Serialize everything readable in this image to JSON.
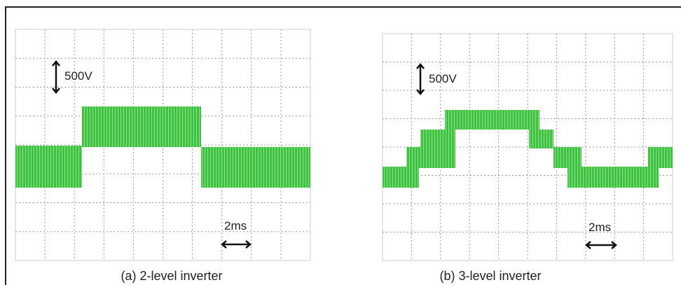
{
  "panels": [
    {
      "voltage_scale": "500V",
      "time_scale": "2ms",
      "caption": "(a) 2-level inverter"
    },
    {
      "voltage_scale": "500V",
      "time_scale": "2ms",
      "caption": "(b) 3-level inverter"
    }
  ]
}
